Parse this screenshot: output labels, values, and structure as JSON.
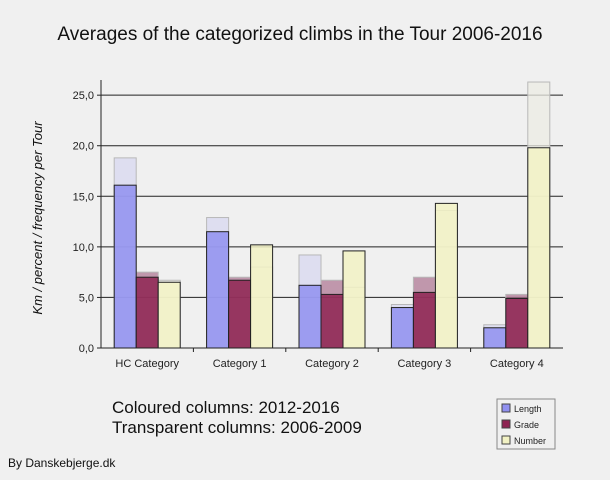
{
  "chart_data": {
    "type": "bar",
    "title": "Averages of the categorized climbs in the Tour 2006-2016",
    "xlabel": "",
    "ylabel": "Km / percent / frequency per Tour",
    "categories": [
      "HC Category",
      "Category 1",
      "Category 2",
      "Category 3",
      "Category 4"
    ],
    "ylim": [
      0,
      26.5
    ],
    "yticks": [
      "0,0",
      "5,0",
      "10,0",
      "15,0",
      "20,0",
      "25,0"
    ],
    "ytick_values": [
      0,
      5,
      10,
      15,
      20,
      25
    ],
    "grid": true,
    "series": [
      {
        "name": "Length",
        "color": "#9090f0",
        "values": [
          16.1,
          11.5,
          6.2,
          4.0,
          2.0
        ]
      },
      {
        "name": "Grade",
        "color": "#8e2452",
        "values": [
          7.0,
          6.7,
          5.3,
          5.5,
          4.9
        ]
      },
      {
        "name": "Number",
        "color": "#f2f2c4",
        "values": [
          6.5,
          10.2,
          9.6,
          14.3,
          19.8
        ]
      }
    ],
    "series_2006_2009": [
      {
        "name": "Length",
        "values": [
          18.8,
          12.9,
          9.2,
          4.3,
          2.3
        ]
      },
      {
        "name": "Grade",
        "values": [
          7.5,
          7.0,
          6.7,
          7.0,
          5.3
        ]
      },
      {
        "name": "Number",
        "values": [
          6.7,
          8.0,
          6.0,
          13.6,
          26.3
        ]
      }
    ],
    "legend": {
      "position": "bottom-right",
      "entries": [
        "Length",
        "Grade",
        "Number"
      ]
    }
  },
  "notes": [
    "Coloured columns: 2012-2016",
    "Transparent columns: 2006-2009"
  ],
  "credit": "By Danskebjerge.dk"
}
